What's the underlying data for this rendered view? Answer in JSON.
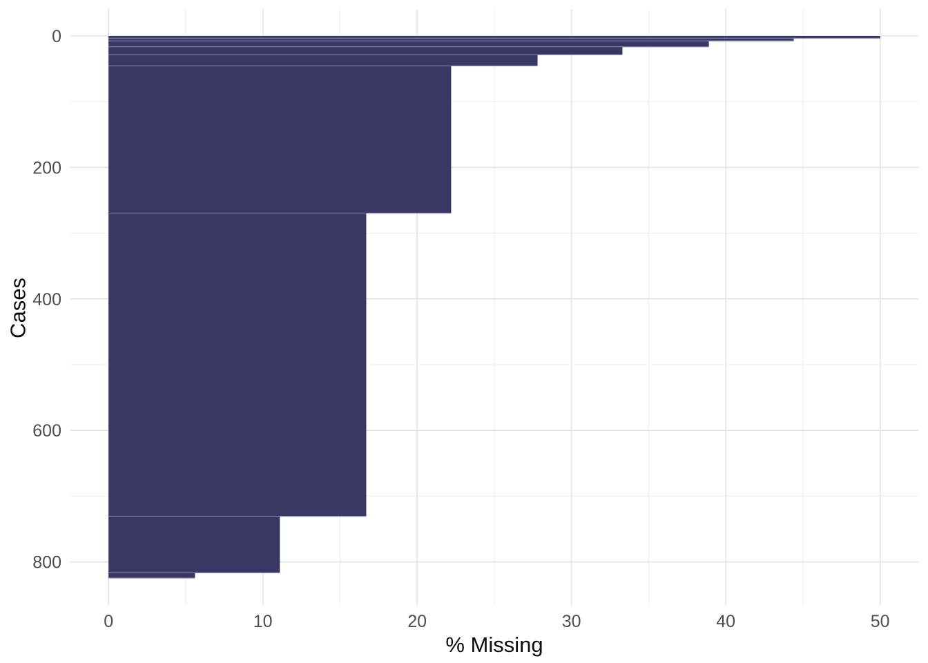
{
  "chart_data": {
    "type": "bar",
    "orientation": "horizontal",
    "title": "",
    "xlabel": "% Missing",
    "ylabel": "Cases",
    "x_ticks": [
      0,
      10,
      20,
      30,
      40,
      50
    ],
    "x_minor_ticks": [
      5,
      15,
      25,
      35,
      45
    ],
    "y_ticks": [
      0,
      200,
      400,
      600,
      800
    ],
    "y_minor_ticks": [
      100,
      300,
      500,
      700
    ],
    "xlim": [
      0,
      50
    ],
    "ylim": [
      0,
      825
    ],
    "y_axis_reversed": true,
    "grid": true,
    "legend_position": "none",
    "background_color": "#ffffff",
    "bar_color": "#383663",
    "bar_edge_color": "#9b97c2",
    "grid_major_color": "#e3e3e3",
    "grid_minor_color": "#ededed",
    "tick_label_color": "#4d4d4d",
    "axis_title_color": "#0a0a0a",
    "n_cases": 825,
    "segments": [
      {
        "pct_missing": 50.0,
        "case_start": 0,
        "case_end": 4
      },
      {
        "pct_missing": 44.4,
        "case_start": 4,
        "case_end": 8
      },
      {
        "pct_missing": 38.9,
        "case_start": 8,
        "case_end": 17
      },
      {
        "pct_missing": 33.3,
        "case_start": 17,
        "case_end": 29
      },
      {
        "pct_missing": 27.8,
        "case_start": 29,
        "case_end": 46
      },
      {
        "pct_missing": 22.2,
        "case_start": 46,
        "case_end": 270
      },
      {
        "pct_missing": 16.7,
        "case_start": 270,
        "case_end": 731
      },
      {
        "pct_missing": 11.1,
        "case_start": 731,
        "case_end": 817
      },
      {
        "pct_missing": 5.6,
        "case_start": 817,
        "case_end": 825
      }
    ]
  }
}
